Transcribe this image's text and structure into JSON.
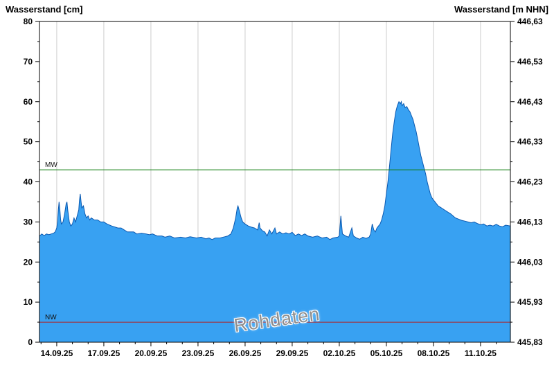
{
  "chart_data": {
    "type": "area",
    "title": "",
    "ylabel_left": "Wasserstand [cm]",
    "ylabel_right": "Wasserstand [m NHN]",
    "watermark": "Rohdaten",
    "y_left": {
      "min": 0,
      "max": 80,
      "ticks": [
        0,
        10,
        20,
        30,
        40,
        50,
        60,
        70,
        80
      ]
    },
    "y_right": {
      "min": 445.83,
      "max": 446.63,
      "tick_labels": [
        "445,83",
        "445,93",
        "446,03",
        "446,13",
        "446,23",
        "446,33",
        "446,43",
        "446,53",
        "446,63"
      ]
    },
    "x": {
      "min": 0,
      "max": 30,
      "ticks": [
        {
          "t": 1.1,
          "label": "14.09.25"
        },
        {
          "t": 4.1,
          "label": "17.09.25"
        },
        {
          "t": 7.1,
          "label": "20.09.25"
        },
        {
          "t": 10.1,
          "label": "23.09.25"
        },
        {
          "t": 13.1,
          "label": "26.09.25"
        },
        {
          "t": 16.1,
          "label": "29.09.25"
        },
        {
          "t": 19.1,
          "label": "02.10.25"
        },
        {
          "t": 22.1,
          "label": "05.10.25"
        },
        {
          "t": 25.1,
          "label": "08.10.25"
        },
        {
          "t": 28.1,
          "label": "11.10.25"
        }
      ]
    },
    "reference_lines": [
      {
        "name": "MW",
        "value": 43,
        "color": "#0e7d0e"
      },
      {
        "name": "NW",
        "value": 5,
        "color": "#b22222"
      }
    ],
    "colors": {
      "fill": "#38a1f2",
      "stroke": "#0a58b0",
      "grid": "#cccccc",
      "axis": "#000000"
    },
    "legend_position": "none",
    "grid": "vertical-only",
    "series": [
      {
        "name": "Wasserstand Rohdaten",
        "points": [
          [
            0,
            26.5
          ],
          [
            0.15,
            27
          ],
          [
            0.3,
            26.6
          ],
          [
            0.45,
            27
          ],
          [
            0.6,
            26.8
          ],
          [
            0.75,
            27
          ],
          [
            0.9,
            27.2
          ],
          [
            1.0,
            27.5
          ],
          [
            1.1,
            28.5
          ],
          [
            1.15,
            30
          ],
          [
            1.2,
            33
          ],
          [
            1.25,
            35
          ],
          [
            1.3,
            33
          ],
          [
            1.35,
            30.5
          ],
          [
            1.4,
            29.5
          ],
          [
            1.5,
            30
          ],
          [
            1.6,
            32
          ],
          [
            1.7,
            34.5
          ],
          [
            1.75,
            35
          ],
          [
            1.8,
            33
          ],
          [
            1.9,
            30
          ],
          [
            2.0,
            29
          ],
          [
            2.1,
            29.5
          ],
          [
            2.2,
            31
          ],
          [
            2.3,
            30
          ],
          [
            2.4,
            31.5
          ],
          [
            2.5,
            33
          ],
          [
            2.55,
            35.5
          ],
          [
            2.6,
            37
          ],
          [
            2.65,
            35
          ],
          [
            2.7,
            33.5
          ],
          [
            2.8,
            34
          ],
          [
            2.9,
            32
          ],
          [
            3.0,
            31
          ],
          [
            3.1,
            31.5
          ],
          [
            3.2,
            30.5
          ],
          [
            3.3,
            31
          ],
          [
            3.5,
            30.5
          ],
          [
            3.7,
            30.5
          ],
          [
            3.9,
            30
          ],
          [
            4.1,
            30
          ],
          [
            4.3,
            29.5
          ],
          [
            4.6,
            29
          ],
          [
            5.0,
            28.5
          ],
          [
            5.2,
            28.5
          ],
          [
            5.4,
            28
          ],
          [
            5.6,
            27.5
          ],
          [
            5.8,
            27.5
          ],
          [
            6.0,
            27.5
          ],
          [
            6.2,
            27
          ],
          [
            6.5,
            27.2
          ],
          [
            6.8,
            27
          ],
          [
            7.0,
            26.8
          ],
          [
            7.2,
            27
          ],
          [
            7.5,
            26.5
          ],
          [
            7.8,
            26.5
          ],
          [
            8.0,
            26.2
          ],
          [
            8.3,
            26.5
          ],
          [
            8.6,
            26
          ],
          [
            9.0,
            26.2
          ],
          [
            9.3,
            26
          ],
          [
            9.6,
            26.3
          ],
          [
            10.0,
            26
          ],
          [
            10.3,
            26.2
          ],
          [
            10.6,
            25.8
          ],
          [
            10.8,
            26
          ],
          [
            11.0,
            25.6
          ],
          [
            11.2,
            26
          ],
          [
            11.5,
            26
          ],
          [
            11.8,
            26.3
          ],
          [
            12.0,
            26.5
          ],
          [
            12.2,
            27
          ],
          [
            12.35,
            28.5
          ],
          [
            12.5,
            31
          ],
          [
            12.6,
            33.5
          ],
          [
            12.65,
            34
          ],
          [
            12.75,
            32.5
          ],
          [
            12.85,
            31
          ],
          [
            12.95,
            30
          ],
          [
            13.1,
            29.5
          ],
          [
            13.3,
            29
          ],
          [
            13.5,
            28.7
          ],
          [
            13.7,
            28.5
          ],
          [
            13.9,
            28
          ],
          [
            14.0,
            29.8
          ],
          [
            14.05,
            28.5
          ],
          [
            14.2,
            27.8
          ],
          [
            14.35,
            27.5
          ],
          [
            14.5,
            26.5
          ],
          [
            14.65,
            28
          ],
          [
            14.8,
            27
          ],
          [
            15.0,
            28.5
          ],
          [
            15.1,
            27
          ],
          [
            15.3,
            27.5
          ],
          [
            15.5,
            27
          ],
          [
            15.7,
            27.3
          ],
          [
            15.9,
            27
          ],
          [
            16.1,
            27.4
          ],
          [
            16.3,
            26.6
          ],
          [
            16.5,
            27
          ],
          [
            16.7,
            26.6
          ],
          [
            16.9,
            27
          ],
          [
            17.1,
            26.5
          ],
          [
            17.4,
            26.2
          ],
          [
            17.7,
            26.5
          ],
          [
            18.0,
            26
          ],
          [
            18.3,
            26.2
          ],
          [
            18.5,
            25.6
          ],
          [
            18.7,
            26
          ],
          [
            19.0,
            26.2
          ],
          [
            19.1,
            26.5
          ],
          [
            19.2,
            31.5
          ],
          [
            19.3,
            27
          ],
          [
            19.5,
            26.5
          ],
          [
            19.7,
            26.2
          ],
          [
            19.9,
            28.5
          ],
          [
            20.0,
            26.5
          ],
          [
            20.2,
            26
          ],
          [
            20.4,
            25.7
          ],
          [
            20.6,
            26.2
          ],
          [
            20.8,
            25.9
          ],
          [
            21.0,
            26.2
          ],
          [
            21.1,
            27
          ],
          [
            21.2,
            29.5
          ],
          [
            21.3,
            28
          ],
          [
            21.4,
            27.5
          ],
          [
            21.5,
            28.5
          ],
          [
            21.6,
            29
          ],
          [
            21.7,
            29.5
          ],
          [
            21.8,
            30.5
          ],
          [
            21.9,
            32
          ],
          [
            22.0,
            34
          ],
          [
            22.1,
            37
          ],
          [
            22.2,
            40
          ],
          [
            22.3,
            44
          ],
          [
            22.4,
            48
          ],
          [
            22.5,
            52
          ],
          [
            22.6,
            55
          ],
          [
            22.7,
            57.5
          ],
          [
            22.8,
            59
          ],
          [
            22.9,
            60
          ],
          [
            23.0,
            59.5
          ],
          [
            23.05,
            60
          ],
          [
            23.1,
            59
          ],
          [
            23.2,
            59.5
          ],
          [
            23.3,
            58.5
          ],
          [
            23.4,
            58.8
          ],
          [
            23.5,
            58
          ],
          [
            23.6,
            57.5
          ],
          [
            23.7,
            56.5
          ],
          [
            23.8,
            55.5
          ],
          [
            23.9,
            54
          ],
          [
            24.0,
            52.5
          ],
          [
            24.1,
            50.5
          ],
          [
            24.2,
            48.5
          ],
          [
            24.3,
            46.5
          ],
          [
            24.4,
            45
          ],
          [
            24.5,
            43.5
          ],
          [
            24.6,
            42
          ],
          [
            24.7,
            40
          ],
          [
            24.8,
            38.5
          ],
          [
            24.9,
            37
          ],
          [
            25.0,
            36
          ],
          [
            25.1,
            35.5
          ],
          [
            25.2,
            35
          ],
          [
            25.4,
            34
          ],
          [
            25.6,
            33.5
          ],
          [
            25.8,
            33
          ],
          [
            26.0,
            32.5
          ],
          [
            26.2,
            32
          ],
          [
            26.35,
            31.5
          ],
          [
            26.5,
            31
          ],
          [
            26.7,
            30.7
          ],
          [
            26.9,
            30.4
          ],
          [
            27.1,
            30.2
          ],
          [
            27.3,
            30
          ],
          [
            27.5,
            29.8
          ],
          [
            27.7,
            30
          ],
          [
            27.9,
            29.6
          ],
          [
            28.1,
            29.3
          ],
          [
            28.3,
            29.5
          ],
          [
            28.5,
            29
          ],
          [
            28.7,
            29.2
          ],
          [
            28.9,
            29
          ],
          [
            29.1,
            29.4
          ],
          [
            29.3,
            29
          ],
          [
            29.5,
            28.8
          ],
          [
            29.7,
            29.2
          ],
          [
            30.0,
            29
          ]
        ]
      }
    ]
  }
}
